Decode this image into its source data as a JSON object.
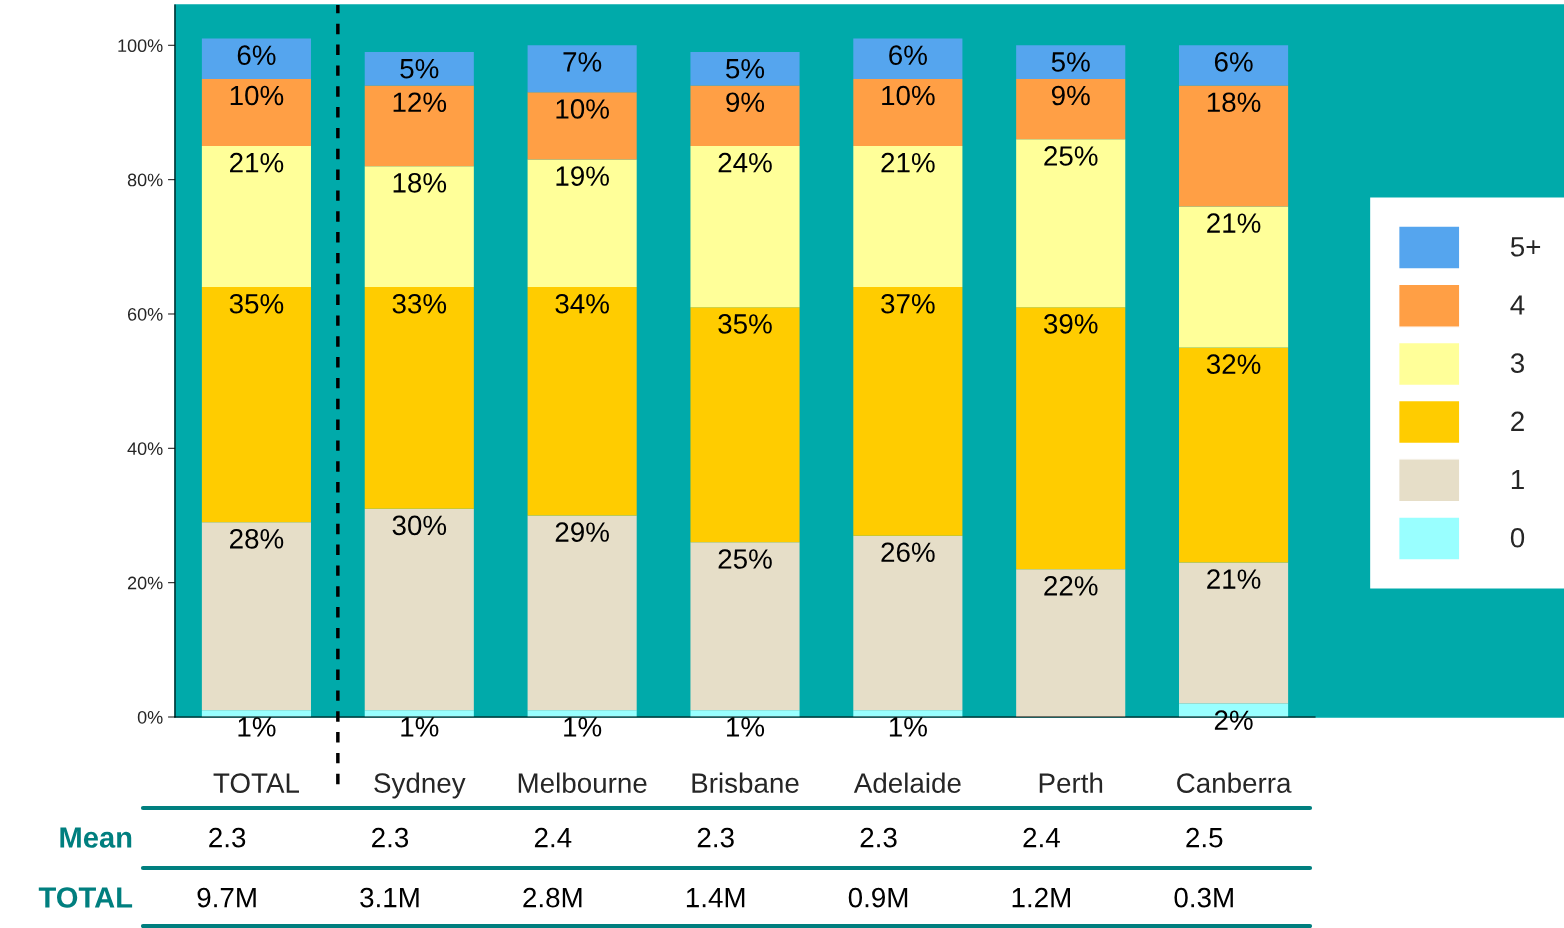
{
  "chart_data": {
    "type": "bar",
    "stacked": true,
    "categories": [
      "TOTAL",
      "Sydney",
      "Melbourne",
      "Brisbane",
      "Adelaide",
      "Perth",
      "Canberra"
    ],
    "series": [
      {
        "name": "0",
        "color": "#99ffff",
        "values": [
          1,
          1,
          1,
          1,
          1,
          0,
          2
        ],
        "value_labels": [
          "1%",
          "1%",
          "1%",
          "1%",
          "1%",
          null,
          "2%"
        ]
      },
      {
        "name": "1",
        "color": "#e6dec8",
        "values": [
          28,
          30,
          29,
          25,
          26,
          22,
          21
        ],
        "value_labels": [
          "28%",
          "30%",
          "29%",
          "25%",
          "26%",
          "22%",
          "21%"
        ]
      },
      {
        "name": "2",
        "color": "#ffcc00",
        "values": [
          35,
          33,
          34,
          35,
          37,
          39,
          32
        ],
        "value_labels": [
          "35%",
          "33%",
          "34%",
          "35%",
          "37%",
          "39%",
          "32%"
        ]
      },
      {
        "name": "3",
        "color": "#ffff99",
        "values": [
          21,
          18,
          19,
          24,
          21,
          25,
          21
        ],
        "value_labels": [
          "21%",
          "18%",
          "19%",
          "24%",
          "21%",
          "25%",
          "21%"
        ]
      },
      {
        "name": "4",
        "color": "#ff9f45",
        "values": [
          10,
          12,
          10,
          9,
          10,
          9,
          18
        ],
        "value_labels": [
          "10%",
          "12%",
          "10%",
          "9%",
          "10%",
          "9%",
          "18%"
        ]
      },
      {
        "name": "5+",
        "color": "#55a5ee",
        "values": [
          6,
          5,
          7,
          5,
          6,
          5,
          6
        ],
        "value_labels": [
          "6%",
          "5%",
          "7%",
          "5%",
          "6%",
          "5%",
          "6%"
        ]
      }
    ],
    "ylim": [
      0,
      106
    ],
    "yticks": [
      {
        "value": 0,
        "label": "0%"
      },
      {
        "value": 20,
        "label": "20%"
      },
      {
        "value": 40,
        "label": "40%"
      },
      {
        "value": 60,
        "label": "60%"
      },
      {
        "value": 80,
        "label": "80%"
      },
      {
        "value": 100,
        "label": "100%"
      }
    ],
    "grid": false,
    "legend": "right",
    "annotations": [
      "Mean",
      "2.3",
      "2.3",
      "2.4",
      "2.3",
      "2.3",
      "2.4",
      "2.5",
      "TOTAL",
      "9.7M",
      "3.1M",
      "2.8M",
      "1.4M",
      "0.9M",
      "1.2M",
      "0.3M"
    ]
  }
}
